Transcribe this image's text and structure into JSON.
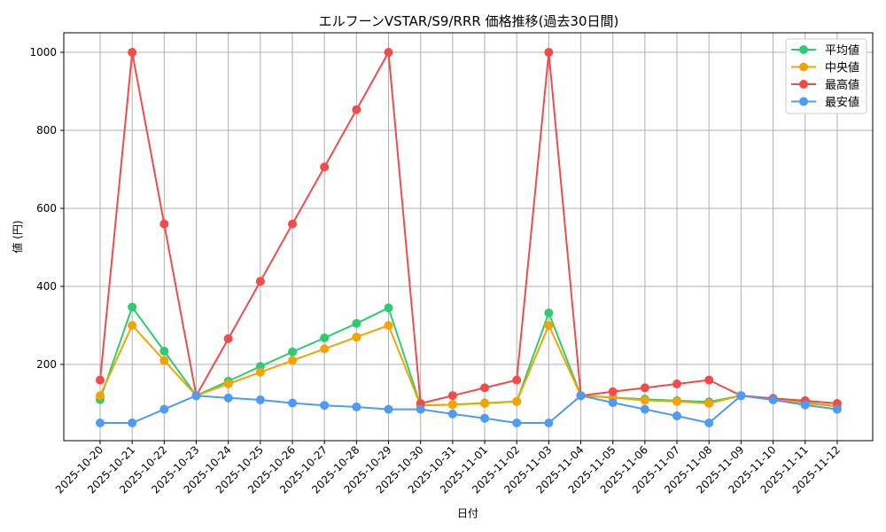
{
  "chart_data": {
    "type": "line",
    "title": "エルフーンVSTAR/S9/RRR 価格推移(過去30日間)",
    "xlabel": "日付",
    "ylabel": "値 (円)",
    "ylim": [
      0,
      1050
    ],
    "yticks": [
      200,
      400,
      600,
      800,
      1000
    ],
    "grid": true,
    "legend_position": "upper right",
    "x": [
      "2025-10-20",
      "2025-10-21",
      "2025-10-22",
      "2025-10-23",
      "2025-10-24",
      "2025-10-25",
      "2025-10-26",
      "2025-10-27",
      "2025-10-28",
      "2025-10-29",
      "2025-10-30",
      "2025-10-31",
      "2025-11-01",
      "2025-11-02",
      "2025-11-03",
      "2025-11-04",
      "2025-11-05",
      "2025-11-06",
      "2025-11-07",
      "2025-11-08",
      "2025-11-09",
      "2025-11-10",
      "2025-11-11",
      "2025-11-12"
    ],
    "series": [
      {
        "name": "平均値",
        "color": "#2ecc71",
        "values": [
          110,
          347,
          234,
          120,
          157,
          195,
          232,
          268,
          305,
          345,
          95,
          97,
          101,
          105,
          332,
          120,
          115,
          111,
          107,
          104,
          120,
          111,
          103,
          93
        ]
      },
      {
        "name": "中央値",
        "color": "#f5a300",
        "values": [
          120,
          300,
          210,
          120,
          150,
          180,
          210,
          240,
          270,
          300,
          95,
          97,
          100,
          105,
          300,
          120,
          115,
          108,
          105,
          100,
          120,
          111,
          101,
          92
        ]
      },
      {
        "name": "最高値",
        "color": "#f24b4b",
        "values": [
          160,
          1000,
          560,
          120,
          266,
          413,
          560,
          706,
          853,
          1000,
          100,
          120,
          140,
          160,
          1000,
          120,
          130,
          140,
          150,
          160,
          120,
          113,
          107,
          100
        ]
      },
      {
        "name": "最安値",
        "color": "#4d9bf5",
        "values": [
          50,
          50,
          85,
          120,
          114,
          109,
          101,
          95,
          91,
          85,
          85,
          73,
          62,
          50,
          50,
          120,
          102,
          85,
          68,
          50,
          120,
          109,
          96,
          85
        ]
      }
    ]
  }
}
